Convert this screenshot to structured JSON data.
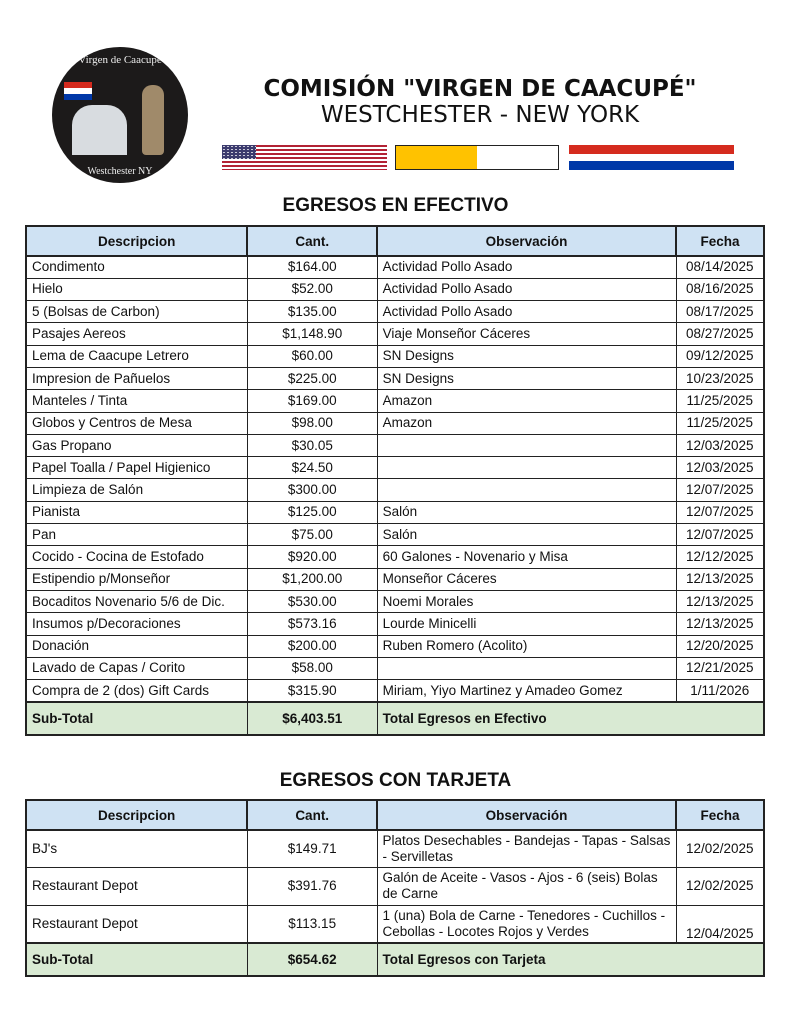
{
  "logo": {
    "top_text": "Virgen de Caacupe",
    "bottom_text": "Westchester NY"
  },
  "header": {
    "title": "COMISIÓN \"VIRGEN DE CAACUPÉ\"",
    "subtitle": "WESTCHESTER - NEW YORK"
  },
  "flags": [
    "us-flag",
    "vatican-flag",
    "paraguay-flag"
  ],
  "columns": [
    "Descripcion",
    "Cant.",
    "Observación",
    "Fecha"
  ],
  "cash": {
    "title": "EGRESOS EN EFECTIVO",
    "rows": [
      [
        "Condimento",
        "$164.00",
        "Actividad Pollo Asado",
        "08/14/2025"
      ],
      [
        "Hielo",
        "$52.00",
        "Actividad Pollo Asado",
        "08/16/2025"
      ],
      [
        "5 (Bolsas de Carbon)",
        "$135.00",
        "Actividad Pollo Asado",
        "08/17/2025"
      ],
      [
        "Pasajes Aereos",
        "$1,148.90",
        "Viaje Monseñor Cáceres",
        "08/27/2025"
      ],
      [
        "Lema de Caacupe Letrero",
        "$60.00",
        "SN Designs",
        "09/12/2025"
      ],
      [
        "Impresion de Pañuelos",
        "$225.00",
        "SN Designs",
        "10/23/2025"
      ],
      [
        "Manteles / Tinta",
        "$169.00",
        "Amazon",
        "11/25/2025"
      ],
      [
        "Globos y Centros de Mesa",
        "$98.00",
        "Amazon",
        "11/25/2025"
      ],
      [
        "Gas Propano",
        "$30.05",
        "",
        "12/03/2025"
      ],
      [
        "Papel Toalla / Papel Higienico",
        "$24.50",
        "",
        "12/03/2025"
      ],
      [
        "Limpieza de Salón",
        "$300.00",
        "",
        "12/07/2025"
      ],
      [
        "Pianista",
        "$125.00",
        "Salón",
        "12/07/2025"
      ],
      [
        "Pan",
        "$75.00",
        "Salón",
        "12/07/2025"
      ],
      [
        "Cocido - Cocina de Estofado",
        "$920.00",
        "60 Galones - Novenario y Misa",
        "12/12/2025"
      ],
      [
        "Estipendio p/Monseñor",
        "$1,200.00",
        "Monseñor Cáceres",
        "12/13/2025"
      ],
      [
        "Bocaditos Novenario 5/6 de Dic.",
        "$530.00",
        "Noemi Morales",
        "12/13/2025"
      ],
      [
        "Insumos p/Decoraciones",
        "$573.16",
        "Lourde Minicelli",
        "12/13/2025"
      ],
      [
        "Donación",
        "$200.00",
        "Ruben Romero (Acolito)",
        "12/20/2025"
      ],
      [
        "Lavado de Capas / Corito",
        "$58.00",
        "",
        "12/21/2025"
      ],
      [
        "Compra de 2 (dos) Gift Cards",
        "$315.90",
        "Miriam, Yiyo Martinez y Amadeo Gomez",
        "1/11/2026"
      ]
    ],
    "subtotal": {
      "label": "Sub-Total",
      "amount": "$6,403.51",
      "note": "Total Egresos en Efectivo"
    }
  },
  "card": {
    "title": "EGRESOS CON TARJETA",
    "rows": [
      [
        "BJ's",
        "$149.71",
        "Platos Desechables - Bandejas - Tapas - Salsas  - Servilletas",
        "12/02/2025"
      ],
      [
        "Restaurant Depot",
        "$391.76",
        "Galón de Aceite - Vasos - Ajos - 6 (seis) Bolas de Carne",
        "12/02/2025"
      ],
      [
        "Restaurant Depot",
        "$113.15",
        "1 (una) Bola de Carne - Tenedores - Cuchillos - Cebollas - Locotes Rojos y Verdes",
        "12/04/2025"
      ]
    ],
    "subtotal": {
      "label": "Sub-Total",
      "amount": "$654.62",
      "note": "Total Egresos con Tarjeta"
    }
  }
}
